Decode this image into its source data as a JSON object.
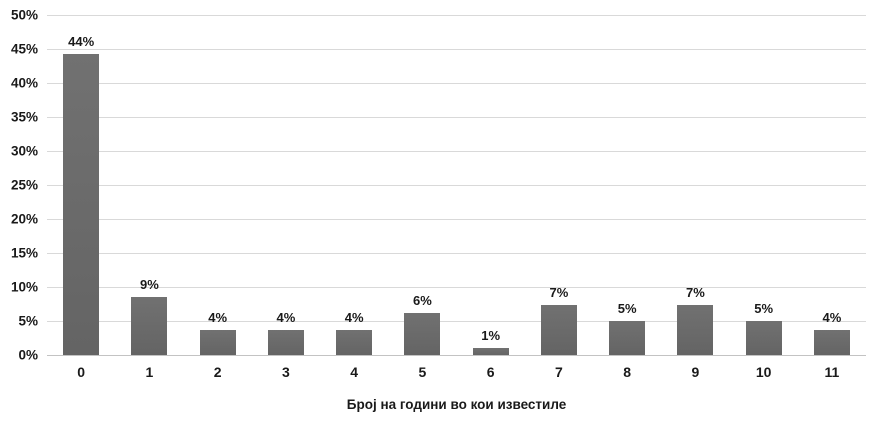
{
  "chart_data": {
    "type": "bar",
    "categories": [
      "0",
      "1",
      "2",
      "3",
      "4",
      "5",
      "6",
      "7",
      "8",
      "9",
      "10",
      "11"
    ],
    "values": [
      44.3,
      8.6,
      3.7,
      3.7,
      3.7,
      6.2,
      1.1,
      7.3,
      5.0,
      7.3,
      5.0,
      3.7
    ],
    "data_labels": [
      "44%",
      "9%",
      "4%",
      "4%",
      "4%",
      "6%",
      "1%",
      "7%",
      "5%",
      "7%",
      "5%",
      "4%"
    ],
    "title": "",
    "xlabel": "Број на години во кои известиле",
    "ylabel": "",
    "ylim": [
      0,
      50
    ],
    "yticks": [
      0,
      5,
      10,
      15,
      20,
      25,
      30,
      35,
      40,
      45,
      50
    ],
    "ytick_labels": [
      "0%",
      "5%",
      "10%",
      "15%",
      "20%",
      "25%",
      "30%",
      "35%",
      "40%",
      "45%",
      "50%"
    ],
    "grid": true,
    "legend": "none",
    "colors": {
      "bar_top": "#717171",
      "bar": "#696969",
      "bar_bottom": "#646464",
      "gridline": "#d9d9d9",
      "axis_line": "#c3c3c3",
      "text": "#1a1a1a",
      "background": "#ffffff"
    }
  }
}
